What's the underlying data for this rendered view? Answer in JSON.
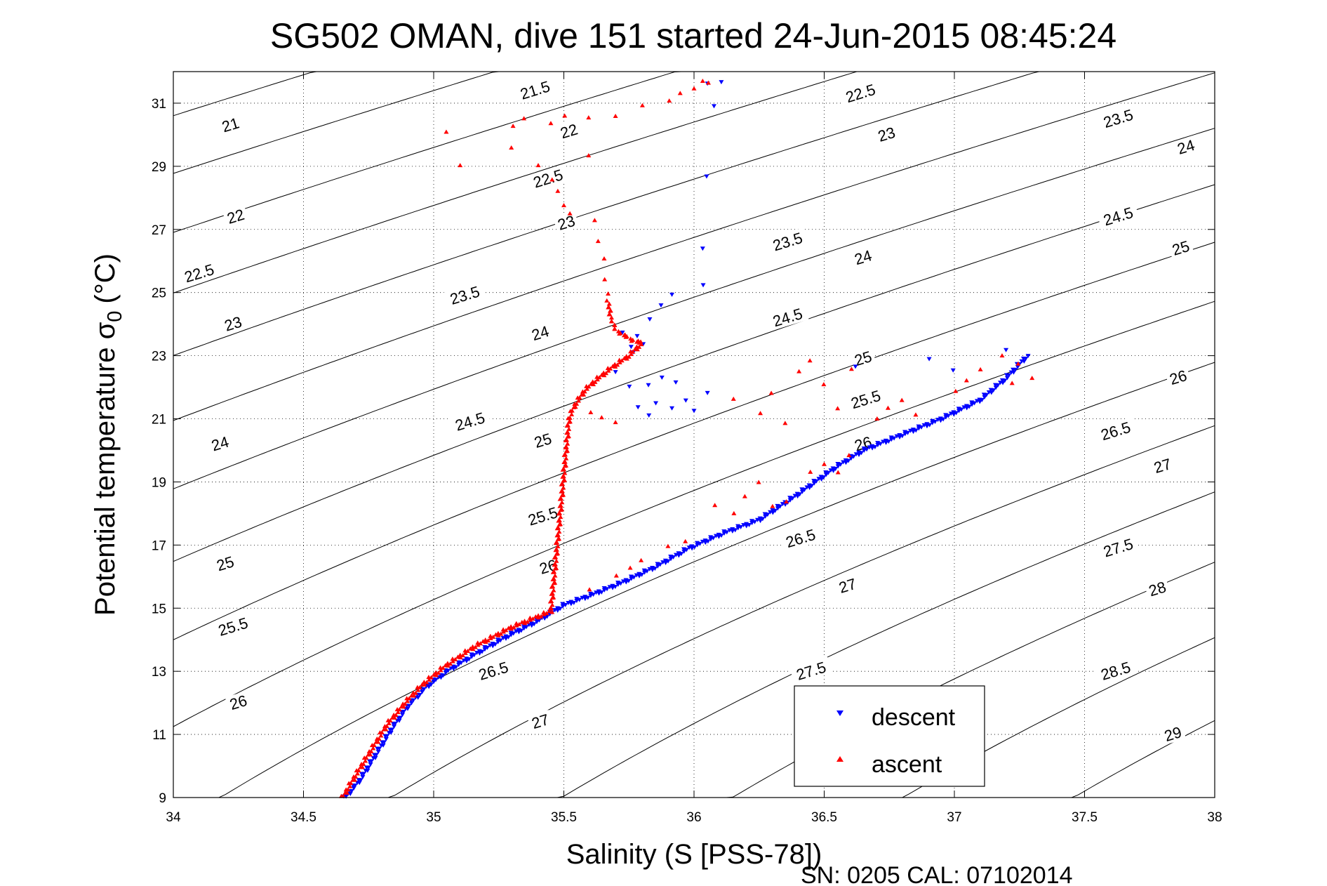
{
  "chart_data": {
    "type": "scatter",
    "title": "SG502 OMAN, dive 151 started 24-Jun-2015 08:45:24",
    "xlabel": "Salinity (S [PSS-78])",
    "ylabel_main": "Potential temperature σ",
    "ylabel_sub": "0",
    "ylabel_unit": "(°C)",
    "footer": "SN: 0205  CAL: 07102014",
    "xlim": [
      34,
      38
    ],
    "ylim": [
      9,
      32
    ],
    "xticks": [
      34,
      34.5,
      35,
      35.5,
      36,
      36.5,
      37,
      37.5,
      38
    ],
    "xtick_labels": [
      "34",
      "34.5",
      "35",
      "35.5",
      "36",
      "36.5",
      "37",
      "37.5",
      "38"
    ],
    "yticks": [
      9,
      11,
      13,
      15,
      17,
      19,
      21,
      23,
      25,
      27,
      29,
      31
    ],
    "ytick_labels": [
      "9",
      "11",
      "13",
      "15",
      "17",
      "19",
      "21",
      "23",
      "25",
      "27",
      "29",
      "31"
    ],
    "grid": "dotted",
    "legend_position": "bottom-right",
    "density_contours": {
      "levels": [
        21,
        21.5,
        22,
        22.5,
        23,
        23.5,
        24,
        24.5,
        25,
        25.5,
        26,
        26.5,
        27,
        27.5,
        28,
        28.5,
        29
      ],
      "labels": [
        {
          "text": "21",
          "s": 34.22,
          "t": 30.3
        },
        {
          "text": "22",
          "s": 34.24,
          "t": 27.4
        },
        {
          "text": "22.5",
          "s": 34.1,
          "t": 25.6
        },
        {
          "text": "23",
          "s": 34.23,
          "t": 24.0
        },
        {
          "text": "24",
          "s": 34.18,
          "t": 20.2
        },
        {
          "text": "25",
          "s": 34.2,
          "t": 16.4
        },
        {
          "text": "25.5",
          "s": 34.23,
          "t": 14.4
        },
        {
          "text": "26",
          "s": 34.25,
          "t": 12.0
        },
        {
          "text": "21.5",
          "s": 35.39,
          "t": 31.4
        },
        {
          "text": "22",
          "s": 35.52,
          "t": 30.1
        },
        {
          "text": "22.5",
          "s": 35.44,
          "t": 28.6
        },
        {
          "text": "23",
          "s": 35.51,
          "t": 27.2
        },
        {
          "text": "23.5",
          "s": 35.12,
          "t": 24.9
        },
        {
          "text": "24",
          "s": 35.41,
          "t": 23.7
        },
        {
          "text": "24.5",
          "s": 35.14,
          "t": 20.9
        },
        {
          "text": "25",
          "s": 35.42,
          "t": 20.3
        },
        {
          "text": "25.5",
          "s": 35.42,
          "t": 17.9
        },
        {
          "text": "26",
          "s": 35.44,
          "t": 16.3
        },
        {
          "text": "26.5",
          "s": 35.23,
          "t": 13.0
        },
        {
          "text": "27",
          "s": 35.41,
          "t": 11.4
        },
        {
          "text": "22.5",
          "s": 36.64,
          "t": 31.3
        },
        {
          "text": "23",
          "s": 36.74,
          "t": 30.0
        },
        {
          "text": "23.5",
          "s": 36.36,
          "t": 26.6
        },
        {
          "text": "24",
          "s": 36.65,
          "t": 26.1
        },
        {
          "text": "24.5",
          "s": 36.36,
          "t": 24.2
        },
        {
          "text": "25",
          "s": 36.65,
          "t": 22.9
        },
        {
          "text": "25.5",
          "s": 36.66,
          "t": 21.6
        },
        {
          "text": "26",
          "s": 36.65,
          "t": 20.2
        },
        {
          "text": "26.5",
          "s": 36.41,
          "t": 17.2
        },
        {
          "text": "27",
          "s": 36.59,
          "t": 15.7
        },
        {
          "text": "27.5",
          "s": 36.45,
          "t": 13.0
        },
        {
          "text": "23.5",
          "s": 37.63,
          "t": 30.5
        },
        {
          "text": "24",
          "s": 37.89,
          "t": 29.6
        },
        {
          "text": "24.5",
          "s": 37.63,
          "t": 27.4
        },
        {
          "text": "25",
          "s": 37.87,
          "t": 26.4
        },
        {
          "text": "26",
          "s": 37.86,
          "t": 22.3
        },
        {
          "text": "26.5",
          "s": 37.62,
          "t": 20.6
        },
        {
          "text": "27",
          "s": 37.8,
          "t": 19.5
        },
        {
          "text": "27.5",
          "s": 37.63,
          "t": 16.9
        },
        {
          "text": "28",
          "s": 37.78,
          "t": 15.6
        },
        {
          "text": "28.5",
          "s": 37.62,
          "t": 13.0
        },
        {
          "text": "29",
          "s": 37.84,
          "t": 11.0
        }
      ]
    },
    "series": [
      {
        "name": "descent",
        "marker": "triangle-down",
        "color": "#0000ff",
        "path": [
          [
            34.66,
            9.0
          ],
          [
            34.72,
            9.6
          ],
          [
            34.78,
            10.4
          ],
          [
            34.84,
            11.2
          ],
          [
            34.9,
            11.9
          ],
          [
            34.97,
            12.5
          ],
          [
            35.05,
            13.0
          ],
          [
            35.15,
            13.5
          ],
          [
            35.28,
            14.1
          ],
          [
            35.4,
            14.6
          ],
          [
            35.5,
            15.1
          ],
          [
            35.6,
            15.4
          ],
          [
            35.72,
            15.8
          ],
          [
            35.85,
            16.3
          ],
          [
            35.98,
            16.9
          ],
          [
            36.12,
            17.4
          ],
          [
            36.25,
            17.8
          ],
          [
            36.38,
            18.5
          ],
          [
            36.55,
            19.5
          ],
          [
            36.65,
            20.0
          ],
          [
            36.8,
            20.5
          ],
          [
            36.95,
            21.0
          ],
          [
            37.1,
            21.6
          ],
          [
            37.2,
            22.3
          ],
          [
            37.28,
            23.0
          ]
        ],
        "scatter": [
          [
            35.73,
            23.7
          ],
          [
            35.76,
            23.3
          ],
          [
            35.78,
            23.6
          ],
          [
            35.8,
            23.4
          ],
          [
            35.77,
            23.1
          ],
          [
            35.83,
            24.2
          ],
          [
            35.87,
            24.6
          ],
          [
            35.92,
            24.9
          ],
          [
            35.7,
            22.5
          ],
          [
            35.75,
            22.0
          ],
          [
            35.82,
            22.1
          ],
          [
            35.88,
            22.3
          ],
          [
            35.93,
            22.2
          ],
          [
            35.85,
            21.5
          ],
          [
            35.92,
            21.3
          ],
          [
            35.97,
            21.6
          ],
          [
            36.05,
            21.8
          ],
          [
            35.78,
            21.4
          ],
          [
            35.83,
            21.1
          ],
          [
            36.0,
            21.3
          ],
          [
            36.03,
            26.4
          ],
          [
            36.04,
            25.2
          ],
          [
            36.05,
            28.7
          ],
          [
            36.05,
            31.6
          ],
          [
            36.1,
            31.7
          ],
          [
            36.08,
            30.9
          ],
          [
            36.62,
            22.7
          ],
          [
            36.9,
            22.9
          ],
          [
            37.0,
            22.5
          ],
          [
            37.2,
            23.2
          ]
        ]
      },
      {
        "name": "ascent",
        "marker": "triangle-up",
        "color": "#ff0000",
        "path": [
          [
            34.65,
            9.0
          ],
          [
            34.7,
            9.7
          ],
          [
            34.76,
            10.5
          ],
          [
            34.82,
            11.3
          ],
          [
            34.89,
            12.0
          ],
          [
            34.96,
            12.6
          ],
          [
            35.05,
            13.2
          ],
          [
            35.16,
            13.8
          ],
          [
            35.3,
            14.4
          ],
          [
            35.45,
            14.9
          ],
          [
            35.52,
            21.0
          ],
          [
            35.54,
            21.4
          ],
          [
            35.58,
            21.9
          ],
          [
            35.62,
            22.2
          ],
          [
            35.68,
            22.6
          ],
          [
            35.75,
            23.0
          ],
          [
            35.8,
            23.4
          ],
          [
            35.76,
            23.5
          ],
          [
            35.7,
            23.8
          ],
          [
            35.68,
            24.2
          ],
          [
            35.67,
            24.7
          ]
        ],
        "scatter": [
          [
            35.05,
            30.1
          ],
          [
            35.1,
            29.0
          ],
          [
            35.3,
            30.3
          ],
          [
            35.35,
            30.5
          ],
          [
            35.45,
            30.4
          ],
          [
            35.5,
            30.6
          ],
          [
            35.6,
            30.5
          ],
          [
            35.7,
            30.6
          ],
          [
            35.8,
            30.9
          ],
          [
            35.9,
            31.1
          ],
          [
            35.95,
            31.3
          ],
          [
            36.0,
            31.5
          ],
          [
            36.03,
            31.7
          ],
          [
            36.06,
            31.6
          ],
          [
            35.3,
            29.6
          ],
          [
            35.4,
            29.0
          ],
          [
            35.45,
            28.6
          ],
          [
            35.48,
            28.2
          ],
          [
            35.5,
            27.8
          ],
          [
            35.52,
            27.5
          ],
          [
            35.6,
            29.3
          ],
          [
            35.62,
            27.3
          ],
          [
            35.63,
            26.6
          ],
          [
            35.65,
            26.1
          ],
          [
            35.66,
            25.4
          ],
          [
            35.67,
            25.0
          ],
          [
            35.6,
            21.2
          ],
          [
            35.65,
            21.0
          ],
          [
            35.7,
            20.9
          ],
          [
            36.15,
            21.6
          ],
          [
            36.25,
            21.2
          ],
          [
            36.3,
            21.8
          ],
          [
            36.35,
            20.9
          ],
          [
            36.4,
            22.5
          ],
          [
            36.45,
            22.8
          ],
          [
            36.5,
            22.1
          ],
          [
            36.55,
            21.3
          ],
          [
            36.6,
            22.6
          ],
          [
            35.97,
            17.1
          ],
          [
            36.08,
            18.3
          ],
          [
            36.15,
            18.0
          ],
          [
            36.2,
            18.5
          ],
          [
            36.25,
            19.0
          ],
          [
            36.3,
            18.2
          ],
          [
            36.35,
            18.4
          ],
          [
            36.45,
            19.3
          ],
          [
            36.5,
            19.6
          ],
          [
            36.55,
            19.3
          ],
          [
            36.6,
            19.8
          ],
          [
            35.6,
            15.6
          ],
          [
            35.7,
            16.0
          ],
          [
            35.75,
            16.3
          ],
          [
            35.8,
            16.5
          ],
          [
            35.9,
            17.0
          ],
          [
            36.7,
            21.0
          ],
          [
            36.75,
            21.3
          ],
          [
            36.8,
            21.6
          ],
          [
            36.85,
            21.1
          ],
          [
            37.0,
            21.9
          ],
          [
            37.05,
            22.2
          ],
          [
            37.1,
            22.6
          ],
          [
            37.18,
            23.0
          ],
          [
            37.25,
            22.7
          ],
          [
            37.3,
            22.3
          ],
          [
            37.22,
            22.1
          ]
        ]
      }
    ]
  }
}
